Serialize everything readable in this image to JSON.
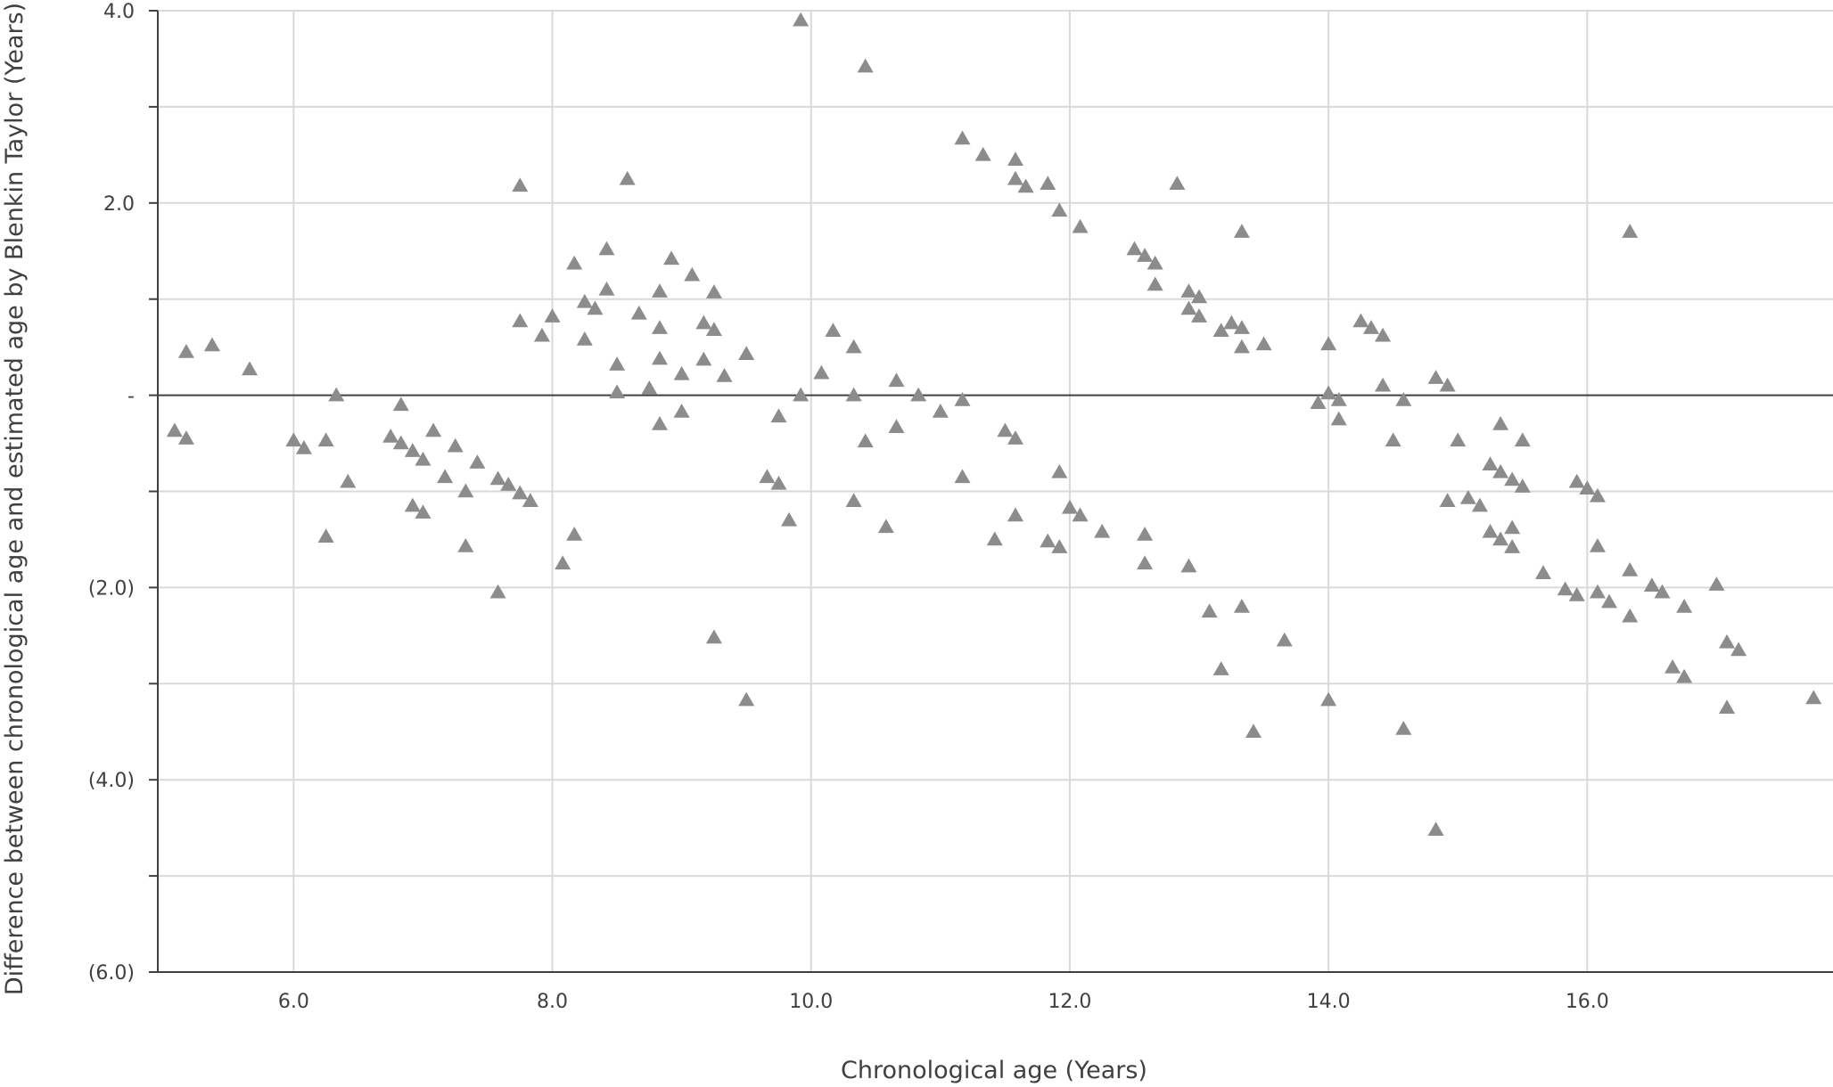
{
  "chart_data": {
    "type": "scatter",
    "xlabel": "Chronological age (Years)",
    "ylabel": "Difference between chronological age and estimated age by Blenkin Taylor (Years)",
    "xlim": [
      4.95,
      17.9
    ],
    "ylim": [
      -6.0,
      4.0
    ],
    "x_ticks": [
      {
        "value": 6,
        "label": "6.0"
      },
      {
        "value": 8,
        "label": "8.0"
      },
      {
        "value": 10,
        "label": "10.0"
      },
      {
        "value": 12,
        "label": "12.0"
      },
      {
        "value": 14,
        "label": "14.0"
      },
      {
        "value": 16,
        "label": "16.0"
      }
    ],
    "y_ticks": [
      {
        "value": 4,
        "label": "4.0"
      },
      {
        "value": 2,
        "label": "2.0"
      },
      {
        "value": 0,
        "label": "-"
      },
      {
        "value": -2,
        "label": "(2.0)"
      },
      {
        "value": -4,
        "label": "(4.0)"
      },
      {
        "value": -6,
        "label": "(6.0)"
      }
    ],
    "y_minor_ticks": [
      3,
      1,
      -1,
      -3,
      -5
    ],
    "grid": true,
    "marker": "triangle",
    "colors": {
      "marker": "#8c8c8c",
      "grid": "#d9d9d9",
      "axis": "#404040",
      "text": "#404040"
    },
    "points": [
      [
        5.08,
        -0.37
      ],
      [
        5.17,
        -0.45
      ],
      [
        5.17,
        0.45
      ],
      [
        5.37,
        0.52
      ],
      [
        5.66,
        0.27
      ],
      [
        6.0,
        -0.47
      ],
      [
        6.08,
        -0.55
      ],
      [
        6.25,
        -0.47
      ],
      [
        6.25,
        -1.47
      ],
      [
        6.33,
        0.0
      ],
      [
        6.42,
        -0.9
      ],
      [
        6.75,
        -0.43
      ],
      [
        6.83,
        -0.1
      ],
      [
        6.83,
        -0.5
      ],
      [
        6.92,
        -0.58
      ],
      [
        6.92,
        -1.15
      ],
      [
        7.0,
        -0.67
      ],
      [
        7.0,
        -1.22
      ],
      [
        7.08,
        -0.37
      ],
      [
        7.17,
        -0.85
      ],
      [
        7.25,
        -0.53
      ],
      [
        7.33,
        -1.0
      ],
      [
        7.33,
        -1.57
      ],
      [
        7.42,
        -0.7
      ],
      [
        7.58,
        -0.87
      ],
      [
        7.58,
        -2.05
      ],
      [
        7.66,
        -0.93
      ],
      [
        7.75,
        -1.02
      ],
      [
        7.75,
        0.77
      ],
      [
        7.75,
        2.18
      ],
      [
        7.83,
        -1.1
      ],
      [
        7.92,
        0.62
      ],
      [
        8.0,
        0.82
      ],
      [
        8.08,
        -1.75
      ],
      [
        8.17,
        1.37
      ],
      [
        8.17,
        -1.45
      ],
      [
        8.25,
        0.97
      ],
      [
        8.25,
        0.58
      ],
      [
        8.33,
        0.9
      ],
      [
        8.42,
        1.52
      ],
      [
        8.42,
        1.1
      ],
      [
        8.5,
        0.32
      ],
      [
        8.5,
        0.03
      ],
      [
        8.58,
        2.25
      ],
      [
        8.67,
        0.85
      ],
      [
        8.75,
        0.07
      ],
      [
        8.83,
        1.08
      ],
      [
        8.83,
        0.7
      ],
      [
        8.83,
        0.38
      ],
      [
        8.83,
        -0.3
      ],
      [
        8.92,
        1.42
      ],
      [
        9.0,
        0.22
      ],
      [
        9.0,
        -0.17
      ],
      [
        9.08,
        1.25
      ],
      [
        9.17,
        0.75
      ],
      [
        9.17,
        0.37
      ],
      [
        9.25,
        1.07
      ],
      [
        9.25,
        0.68
      ],
      [
        9.25,
        -2.52
      ],
      [
        9.33,
        0.2
      ],
      [
        9.5,
        0.43
      ],
      [
        9.5,
        -3.17
      ],
      [
        9.66,
        -0.85
      ],
      [
        9.75,
        -0.92
      ],
      [
        9.75,
        -0.22
      ],
      [
        9.83,
        -1.3
      ],
      [
        9.92,
        3.9
      ],
      [
        9.92,
        0.0
      ],
      [
        10.08,
        0.23
      ],
      [
        10.17,
        0.67
      ],
      [
        10.33,
        0.5
      ],
      [
        10.33,
        0.0
      ],
      [
        10.33,
        -1.1
      ],
      [
        10.42,
        3.42
      ],
      [
        10.42,
        -0.48
      ],
      [
        10.58,
        -1.37
      ],
      [
        10.66,
        0.15
      ],
      [
        10.66,
        -0.33
      ],
      [
        10.83,
        0.0
      ],
      [
        11.0,
        -0.17
      ],
      [
        11.17,
        2.67
      ],
      [
        11.17,
        -0.05
      ],
      [
        11.17,
        -0.85
      ],
      [
        11.33,
        2.5
      ],
      [
        11.42,
        -1.5
      ],
      [
        11.5,
        -0.37
      ],
      [
        11.58,
        2.45
      ],
      [
        11.58,
        2.25
      ],
      [
        11.58,
        -0.45
      ],
      [
        11.58,
        -1.25
      ],
      [
        11.66,
        2.17
      ],
      [
        11.83,
        2.2
      ],
      [
        11.83,
        -1.52
      ],
      [
        11.92,
        1.92
      ],
      [
        11.92,
        -0.8
      ],
      [
        11.92,
        -1.58
      ],
      [
        12.0,
        -1.17
      ],
      [
        12.08,
        1.75
      ],
      [
        12.08,
        -1.25
      ],
      [
        12.25,
        -1.42
      ],
      [
        12.5,
        1.52
      ],
      [
        12.58,
        1.45
      ],
      [
        12.58,
        -1.45
      ],
      [
        12.58,
        -1.75
      ],
      [
        12.66,
        1.37
      ],
      [
        12.66,
        1.15
      ],
      [
        12.83,
        2.2
      ],
      [
        12.92,
        1.08
      ],
      [
        12.92,
        0.9
      ],
      [
        12.92,
        -1.78
      ],
      [
        13.0,
        1.02
      ],
      [
        13.0,
        0.82
      ],
      [
        13.08,
        -2.25
      ],
      [
        13.17,
        0.67
      ],
      [
        13.17,
        -2.85
      ],
      [
        13.25,
        0.75
      ],
      [
        13.33,
        0.7
      ],
      [
        13.33,
        0.5
      ],
      [
        13.33,
        1.7
      ],
      [
        13.33,
        -2.2
      ],
      [
        13.42,
        -3.5
      ],
      [
        13.5,
        0.53
      ],
      [
        13.66,
        -2.55
      ],
      [
        13.92,
        -0.08
      ],
      [
        14.0,
        0.53
      ],
      [
        14.0,
        0.02
      ],
      [
        14.0,
        -3.17
      ],
      [
        14.08,
        -0.05
      ],
      [
        14.08,
        -0.25
      ],
      [
        14.25,
        0.77
      ],
      [
        14.33,
        0.7
      ],
      [
        14.42,
        0.62
      ],
      [
        14.42,
        0.1
      ],
      [
        14.5,
        -0.47
      ],
      [
        14.58,
        -0.05
      ],
      [
        14.58,
        -3.47
      ],
      [
        14.83,
        0.18
      ],
      [
        14.83,
        -4.52
      ],
      [
        14.92,
        0.1
      ],
      [
        14.92,
        -1.1
      ],
      [
        15.0,
        -0.47
      ],
      [
        15.08,
        -1.07
      ],
      [
        15.17,
        -1.15
      ],
      [
        15.25,
        -0.72
      ],
      [
        15.25,
        -1.42
      ],
      [
        15.33,
        -0.3
      ],
      [
        15.33,
        -0.8
      ],
      [
        15.33,
        -1.5
      ],
      [
        15.42,
        -0.88
      ],
      [
        15.42,
        -1.38
      ],
      [
        15.42,
        -1.58
      ],
      [
        15.5,
        -0.47
      ],
      [
        15.5,
        -0.95
      ],
      [
        15.66,
        -1.85
      ],
      [
        15.83,
        -2.02
      ],
      [
        15.92,
        -0.9
      ],
      [
        15.92,
        -2.08
      ],
      [
        16.0,
        -0.97
      ],
      [
        16.08,
        -1.05
      ],
      [
        16.08,
        -1.57
      ],
      [
        16.08,
        -2.05
      ],
      [
        16.17,
        -2.15
      ],
      [
        16.33,
        1.7
      ],
      [
        16.33,
        -1.82
      ],
      [
        16.33,
        -2.3
      ],
      [
        16.5,
        -1.98
      ],
      [
        16.58,
        -2.05
      ],
      [
        16.66,
        -2.83
      ],
      [
        16.75,
        -2.2
      ],
      [
        16.75,
        -2.93
      ],
      [
        17.0,
        -1.97
      ],
      [
        17.08,
        -2.57
      ],
      [
        17.08,
        -3.25
      ],
      [
        17.17,
        -2.65
      ],
      [
        17.75,
        -3.15
      ]
    ]
  }
}
